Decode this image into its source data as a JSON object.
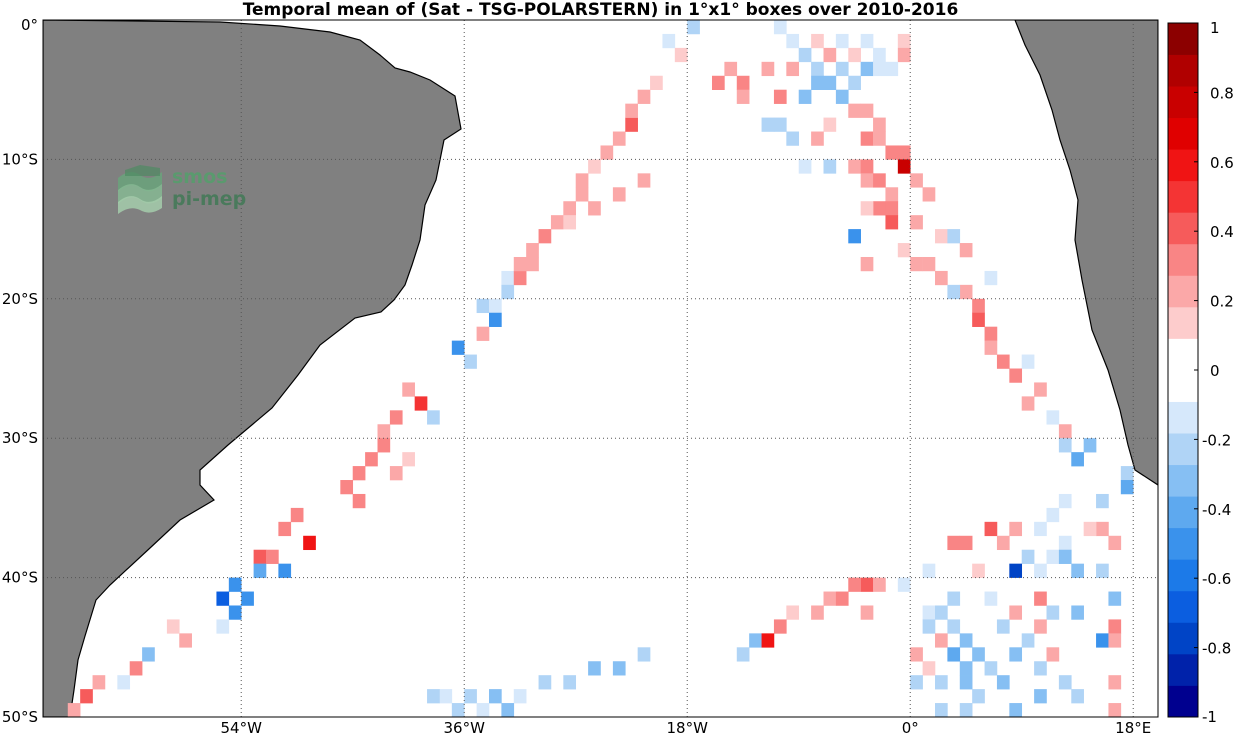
{
  "title": "Temporal mean of (Sat - TSG-POLARSTERN) in 1°x1° boxes over 2010-2016",
  "colors": {
    "land": "#808080",
    "coast": "#000000",
    "ocean": "#ffffff",
    "colormap": [
      "#00008f",
      "#0022aa",
      "#0044c6",
      "#0b5ee0",
      "#1c7ae8",
      "#3a92ec",
      "#5ea9ef",
      "#86bff3",
      "#b0d4f6",
      "#d6e8fb",
      "#ffffff",
      "#ffffff",
      "#fdcccc",
      "#fba8a8",
      "#f98585",
      "#f65b5b",
      "#f43434",
      "#f01414",
      "#e00000",
      "#c90000",
      "#b00000",
      "#8c0000"
    ]
  },
  "logo": {
    "line1": "smos",
    "line2": "pi-mep",
    "icon": "smos-wave-logo"
  },
  "map": {
    "lon_range": [
      -70,
      20
    ],
    "lat_range": [
      -50,
      0
    ],
    "x_ticks": [
      {
        "lon": -54,
        "label": "54°W"
      },
      {
        "lon": -36,
        "label": "36°W"
      },
      {
        "lon": -18,
        "label": "18°W"
      },
      {
        "lon": 0,
        "label": "0°"
      },
      {
        "lon": 18,
        "label": "18°E"
      }
    ],
    "y_ticks": [
      {
        "lat": 0,
        "label": "0°"
      },
      {
        "lat": -10,
        "label": "10°S"
      },
      {
        "lat": -20,
        "label": "20°S"
      },
      {
        "lat": -30,
        "label": "30°S"
      },
      {
        "lat": -40,
        "label": "40°S"
      },
      {
        "lat": -50,
        "label": "50°S"
      }
    ],
    "grid": "dotted"
  },
  "colorbar": {
    "range": [
      -1,
      1
    ],
    "levels": 22,
    "tick_labels": [
      "1",
      "0.8",
      "0.6",
      "0.4",
      "0.2",
      "0",
      "-0.2",
      "-0.4",
      "-0.6",
      "-0.8",
      "-1"
    ],
    "tick_values": [
      1,
      0.8,
      0.6,
      0.4,
      0.2,
      0,
      -0.2,
      -0.4,
      -0.6,
      -0.8,
      -1
    ]
  },
  "chart_data": {
    "type": "heatmap",
    "title": "Temporal mean of (Sat - TSG-POLARSTERN) in 1°x1° boxes over 2010-2016",
    "units": "1°x1° boxes",
    "value_range": [
      -1,
      1
    ],
    "cells": [
      [
        -11,
        0,
        -0.1
      ],
      [
        -10,
        -1,
        -0.1
      ],
      [
        -8,
        -1,
        0.1
      ],
      [
        -6,
        -1,
        -0.1
      ],
      [
        -4,
        -1,
        -0.1
      ],
      [
        -1,
        -1,
        0.1
      ],
      [
        -7,
        -2,
        0.2
      ],
      [
        -5,
        -2,
        0.1
      ],
      [
        -3,
        -2,
        -0.1
      ],
      [
        -1,
        -2,
        0.2
      ],
      [
        -9,
        -2,
        -0.2
      ],
      [
        -10,
        -3,
        0.2
      ],
      [
        -12,
        -3,
        0.2
      ],
      [
        -8,
        -3,
        -0.2
      ],
      [
        -6,
        -3,
        -0.2
      ],
      [
        -4,
        -3,
        -0.3
      ],
      [
        -3,
        -3,
        -0.1
      ],
      [
        -2,
        -3,
        -0.1
      ],
      [
        -7,
        -4,
        -0.3
      ],
      [
        -5,
        -4,
        -0.2
      ],
      [
        -16,
        -4,
        0.3
      ],
      [
        -14,
        -4,
        0.3
      ],
      [
        -8,
        -4,
        -0.3
      ],
      [
        -9,
        -5,
        -0.3
      ],
      [
        -11,
        -5,
        0.3
      ],
      [
        -14,
        -5,
        0.2
      ],
      [
        -6,
        -5,
        -0.3
      ],
      [
        -5,
        -6,
        0.2
      ],
      [
        -4,
        -6,
        0.2
      ],
      [
        -12,
        -7,
        -0.2
      ],
      [
        -7,
        -7,
        0.1
      ],
      [
        -3,
        -7,
        0.2
      ],
      [
        -11,
        -7,
        -0.2
      ],
      [
        -8,
        -8,
        0.2
      ],
      [
        -4,
        -8,
        0.3
      ],
      [
        -3,
        -8,
        0.2
      ],
      [
        -10,
        -8,
        -0.2
      ],
      [
        -1,
        -9,
        0.3
      ],
      [
        -2,
        -9,
        0.3
      ],
      [
        -5,
        -10,
        0.2
      ],
      [
        -4,
        -10,
        0.3
      ],
      [
        -7,
        -10,
        -0.2
      ],
      [
        -9,
        -10,
        -0.1
      ],
      [
        -1,
        -10,
        0.8
      ],
      [
        -4,
        -11,
        0.2
      ],
      [
        -3,
        -11,
        0.3
      ],
      [
        0,
        -11,
        0.2
      ],
      [
        1,
        -12,
        0.2
      ],
      [
        -2,
        -12,
        0.2
      ],
      [
        -3,
        -13,
        0.3
      ],
      [
        -2,
        -13,
        0.3
      ],
      [
        -4,
        -13,
        0.1
      ],
      [
        -2,
        -14,
        0.4
      ],
      [
        0,
        -14,
        0.2
      ],
      [
        2,
        -15,
        0.1
      ],
      [
        3,
        -15,
        -0.2
      ],
      [
        -5,
        -15,
        -0.5
      ],
      [
        4,
        -16,
        0.2
      ],
      [
        -1,
        -16,
        0.1
      ],
      [
        -4,
        -17,
        0.2
      ],
      [
        0,
        -17,
        0.2
      ],
      [
        1,
        -17,
        0.2
      ],
      [
        2,
        -18,
        0.2
      ],
      [
        6,
        -18,
        -0.1
      ],
      [
        4,
        -19,
        0.2
      ],
      [
        3,
        -19,
        -0.2
      ],
      [
        5,
        -20,
        0.3
      ],
      [
        5,
        -21,
        0.4
      ],
      [
        6,
        -22,
        0.3
      ],
      [
        6,
        -23,
        0.2
      ],
      [
        7,
        -24,
        0.3
      ],
      [
        9,
        -24,
        -0.1
      ],
      [
        8,
        -25,
        0.3
      ],
      [
        10,
        -26,
        0.2
      ],
      [
        9,
        -27,
        0.2
      ],
      [
        11,
        -28,
        -0.1
      ],
      [
        12,
        -29,
        0.2
      ],
      [
        12,
        -30,
        -0.2
      ],
      [
        14,
        -30,
        -0.3
      ],
      [
        13,
        -31,
        -0.4
      ],
      [
        17,
        -32,
        -0.2
      ],
      [
        17,
        -33,
        -0.4
      ],
      [
        12,
        -34,
        -0.1
      ],
      [
        15,
        -34,
        -0.2
      ],
      [
        11,
        -35,
        -0.1
      ],
      [
        10,
        -36,
        -0.1
      ],
      [
        6,
        -36,
        0.4
      ],
      [
        8,
        -36,
        0.2
      ],
      [
        15,
        -36,
        0.2
      ],
      [
        14,
        -36,
        0.1
      ],
      [
        3,
        -37,
        0.3
      ],
      [
        4,
        -37,
        0.3
      ],
      [
        7,
        -37,
        0.2
      ],
      [
        12,
        -37,
        -0.1
      ],
      [
        16,
        -37,
        0.2
      ],
      [
        11,
        -38,
        -0.1
      ],
      [
        9,
        -38,
        -0.2
      ],
      [
        12,
        -38,
        -0.3
      ],
      [
        1,
        -39,
        -0.1
      ],
      [
        5,
        -39,
        0.1
      ],
      [
        8,
        -39,
        -0.8
      ],
      [
        10,
        -39,
        -0.1
      ],
      [
        13,
        -39,
        -0.3
      ],
      [
        15,
        -39,
        -0.2
      ],
      [
        -4,
        -40,
        0.4
      ],
      [
        -3,
        -40,
        0.2
      ],
      [
        -1,
        -40,
        -0.1
      ],
      [
        -5,
        -40,
        0.3
      ],
      [
        -7,
        -41,
        0.2
      ],
      [
        -6,
        -41,
        0.3
      ],
      [
        3,
        -41,
        -0.2
      ],
      [
        6,
        -41,
        -0.1
      ],
      [
        10,
        -41,
        0.3
      ],
      [
        16,
        -41,
        -0.3
      ],
      [
        -8,
        -42,
        0.2
      ],
      [
        -4,
        -42,
        0.2
      ],
      [
        -10,
        -42,
        0.1
      ],
      [
        1,
        -42,
        -0.1
      ],
      [
        2,
        -42,
        -0.2
      ],
      [
        8,
        -42,
        0.2
      ],
      [
        11,
        -42,
        -0.2
      ],
      [
        13,
        -42,
        -0.3
      ],
      [
        -11,
        -43,
        0.3
      ],
      [
        1,
        -43,
        -0.2
      ],
      [
        3,
        -43,
        -0.2
      ],
      [
        7,
        -43,
        -0.2
      ],
      [
        10,
        -43,
        0.2
      ],
      [
        16,
        -43,
        0.3
      ],
      [
        -13,
        -44,
        -0.3
      ],
      [
        -12,
        -44,
        0.6
      ],
      [
        2,
        -44,
        0.2
      ],
      [
        4,
        -44,
        -0.3
      ],
      [
        9,
        -44,
        -0.2
      ],
      [
        15,
        -44,
        -0.5
      ],
      [
        16,
        -44,
        0.2
      ],
      [
        -14,
        -45,
        -0.2
      ],
      [
        0,
        -45,
        0.2
      ],
      [
        3,
        -45,
        -0.4
      ],
      [
        5,
        -45,
        -0.3
      ],
      [
        8,
        -45,
        -0.3
      ],
      [
        11,
        -45,
        0.2
      ],
      [
        -22,
        -45,
        -0.2
      ],
      [
        -24,
        -46,
        -0.3
      ],
      [
        -26,
        -46,
        -0.3
      ],
      [
        1,
        -46,
        0.1
      ],
      [
        4,
        -46,
        -0.3
      ],
      [
        6,
        -46,
        -0.2
      ],
      [
        10,
        -46,
        -0.2
      ],
      [
        -28,
        -47,
        -0.2
      ],
      [
        -30,
        -47,
        -0.2
      ],
      [
        0,
        -47,
        -0.2
      ],
      [
        2,
        -47,
        -0.2
      ],
      [
        4,
        -47,
        -0.3
      ],
      [
        7,
        -47,
        -0.3
      ],
      [
        12,
        -47,
        -0.2
      ],
      [
        16,
        -47,
        0.2
      ],
      [
        -32,
        -48,
        -0.1
      ],
      [
        -34,
        -48,
        -0.3
      ],
      [
        -36,
        -48,
        -0.2
      ],
      [
        -38,
        -48,
        -0.1
      ],
      [
        -39,
        -48,
        -0.2
      ],
      [
        5,
        -48,
        -0.2
      ],
      [
        10,
        -48,
        -0.3
      ],
      [
        13,
        -48,
        -0.2
      ],
      [
        -33,
        -49,
        -0.3
      ],
      [
        -35,
        -49,
        -0.1
      ],
      [
        -37,
        -49,
        -0.2
      ],
      [
        2,
        -49,
        -0.2
      ],
      [
        4,
        -49,
        -0.2
      ],
      [
        8,
        -49,
        -0.3
      ],
      [
        16,
        -49,
        0.2
      ],
      [
        -41,
        -26,
        0.2
      ],
      [
        -40,
        -27,
        0.5
      ],
      [
        -39,
        -28,
        -0.2
      ],
      [
        -42,
        -28,
        0.3
      ],
      [
        -43,
        -29,
        0.2
      ],
      [
        -43,
        -30,
        0.3
      ],
      [
        -44,
        -31,
        0.3
      ],
      [
        -41,
        -31,
        0.1
      ],
      [
        -45,
        -32,
        0.3
      ],
      [
        -42,
        -32,
        0.2
      ],
      [
        -46,
        -33,
        0.3
      ],
      [
        -45,
        -34,
        0.3
      ],
      [
        -50,
        -35,
        0.3
      ],
      [
        -51,
        -36,
        0.3
      ],
      [
        -49,
        -37,
        0.6
      ],
      [
        -53,
        -38,
        0.4
      ],
      [
        -52,
        -38,
        0.3
      ],
      [
        -51,
        -39,
        -0.5
      ],
      [
        -53,
        -39,
        -0.4
      ],
      [
        -55,
        -40,
        -0.5
      ],
      [
        -54,
        -41,
        -0.5
      ],
      [
        -56,
        -41,
        -0.7
      ],
      [
        -55,
        -42,
        -0.5
      ],
      [
        -56,
        -43,
        -0.1
      ],
      [
        -59,
        -44,
        0.2
      ],
      [
        -62,
        -45,
        -0.3
      ],
      [
        -63,
        -46,
        0.3
      ],
      [
        -64,
        -47,
        -0.1
      ],
      [
        -66,
        -47,
        0.2
      ],
      [
        -67,
        -48,
        0.4
      ],
      [
        -68,
        -49,
        0.2
      ],
      [
        -60,
        -43,
        0.1
      ],
      [
        -37,
        -23,
        -0.5
      ],
      [
        -36,
        -24,
        -0.2
      ],
      [
        -35,
        -20,
        -0.2
      ],
      [
        -34,
        -20,
        -0.1
      ],
      [
        -34,
        -21,
        -0.5
      ],
      [
        -35,
        -22,
        0.2
      ],
      [
        -33,
        -18,
        -0.1
      ],
      [
        -32,
        -18,
        0.3
      ],
      [
        -32,
        -17,
        0.2
      ],
      [
        -31,
        -16,
        0.2
      ],
      [
        -30,
        -15,
        0.3
      ],
      [
        -29,
        -14,
        0.2
      ],
      [
        -28,
        -13,
        0.2
      ],
      [
        -27,
        -12,
        0.2
      ],
      [
        -27,
        -11,
        0.2
      ],
      [
        -26,
        -10,
        0.1
      ],
      [
        -25,
        -9,
        0.2
      ],
      [
        -24,
        -8,
        0.2
      ],
      [
        -23,
        -7,
        0.4
      ],
      [
        -23,
        -6,
        0.2
      ],
      [
        -22,
        -5,
        0.2
      ],
      [
        -21,
        -4,
        0.1
      ],
      [
        -22,
        -11,
        0.2
      ],
      [
        -24,
        -12,
        0.2
      ],
      [
        -26,
        -13,
        0.2
      ],
      [
        -28,
        -14,
        0.1
      ],
      [
        -31,
        -17,
        0.2
      ],
      [
        -33,
        -19,
        -0.2
      ],
      [
        -20,
        -1,
        -0.1
      ],
      [
        -19,
        -2,
        0.1
      ],
      [
        -18,
        0,
        -0.2
      ],
      [
        -15,
        -3,
        0.2
      ]
    ]
  }
}
